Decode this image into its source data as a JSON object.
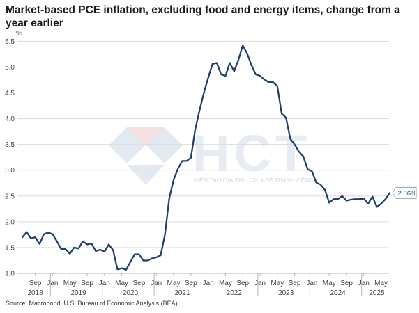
{
  "title": "Market-based PCE inflation, excluding food and energy items, change from a year earlier",
  "source": "Source: Macrobond, U.S. Bureau of Economic Analysis (BEA)",
  "watermark": {
    "logo_text": "HCT",
    "tagline": "KIẾN TẠO GIÁ TRỊ - CHIA SẺ THÀNH CÔNG"
  },
  "colors": {
    "line": "#1f3f6e",
    "grid": "#dcdcdc",
    "axis": "#b5b5b5"
  },
  "chart_data": {
    "type": "line",
    "ylabel": "%",
    "ylim": [
      1.0,
      5.6
    ],
    "yticks": [
      1.0,
      1.5,
      2.0,
      2.5,
      3.0,
      3.5,
      4.0,
      4.5,
      5.0,
      5.5
    ],
    "ytick_labels": [
      "1.0",
      "1.5",
      "2.0",
      "2.5",
      "3.0",
      "3.5",
      "4.0",
      "4.5",
      "5.0",
      "5.5"
    ],
    "grid": true,
    "x_start": "Jun 2018",
    "months": [
      "Jun 2018",
      "Jul 2018",
      "Aug 2018",
      "Sep 2018",
      "Oct 2018",
      "Nov 2018",
      "Dec 2018",
      "Jan 2019",
      "Feb 2019",
      "Mar 2019",
      "Apr 2019",
      "May 2019",
      "Jun 2019",
      "Jul 2019",
      "Aug 2019",
      "Sep 2019",
      "Oct 2019",
      "Nov 2019",
      "Dec 2019",
      "Jan 2020",
      "Feb 2020",
      "Mar 2020",
      "Apr 2020",
      "May 2020",
      "Jun 2020",
      "Jul 2020",
      "Aug 2020",
      "Sep 2020",
      "Oct 2020",
      "Nov 2020",
      "Dec 2020",
      "Jan 2021",
      "Feb 2021",
      "Mar 2021",
      "Apr 2021",
      "May 2021",
      "Jun 2021",
      "Jul 2021",
      "Aug 2021",
      "Sep 2021",
      "Oct 2021",
      "Nov 2021",
      "Dec 2021",
      "Jan 2022",
      "Feb 2022",
      "Mar 2022",
      "Apr 2022",
      "May 2022",
      "Jun 2022",
      "Jul 2022",
      "Aug 2022",
      "Sep 2022",
      "Oct 2022",
      "Nov 2022",
      "Dec 2022",
      "Jan 2023",
      "Feb 2023",
      "Mar 2023",
      "Apr 2023",
      "May 2023",
      "Jun 2023",
      "Jul 2023",
      "Aug 2023",
      "Sep 2023",
      "Oct 2023",
      "Nov 2023",
      "Dec 2023",
      "Jan 2024",
      "Feb 2024",
      "Mar 2024",
      "Apr 2024",
      "May 2024",
      "Jun 2024",
      "Jul 2024",
      "Aug 2024",
      "Sep 2024",
      "Oct 2024",
      "Nov 2024",
      "Dec 2024",
      "Jan 2025",
      "Feb 2025",
      "Mar 2025",
      "Apr 2025",
      "May 2025",
      "Jun 2025",
      "Jul 2025"
    ],
    "values": [
      1.7,
      1.8,
      1.68,
      1.7,
      1.57,
      1.76,
      1.79,
      1.76,
      1.62,
      1.47,
      1.47,
      1.38,
      1.5,
      1.48,
      1.62,
      1.56,
      1.58,
      1.43,
      1.46,
      1.42,
      1.56,
      1.45,
      1.08,
      1.1,
      1.07,
      1.22,
      1.37,
      1.37,
      1.25,
      1.25,
      1.29,
      1.31,
      1.35,
      1.75,
      2.46,
      2.81,
      3.03,
      3.18,
      3.18,
      3.24,
      3.79,
      4.16,
      4.5,
      4.79,
      5.06,
      5.08,
      4.86,
      4.83,
      5.08,
      4.92,
      5.14,
      5.42,
      5.27,
      5.04,
      4.86,
      4.83,
      4.76,
      4.71,
      4.71,
      4.63,
      4.1,
      4.02,
      3.61,
      3.5,
      3.36,
      3.27,
      3.02,
      2.98,
      2.76,
      2.72,
      2.62,
      2.37,
      2.44,
      2.44,
      2.5,
      2.41,
      2.43,
      2.44,
      2.44,
      2.45,
      2.35,
      2.49,
      2.29,
      2.35,
      2.44,
      2.56
    ],
    "x_tick_labels": [
      {
        "month": "Sep 2018",
        "label": "Sep"
      },
      {
        "month": "Jan 2019",
        "label": "Jan"
      },
      {
        "month": "May 2019",
        "label": "May"
      },
      {
        "month": "Sep 2019",
        "label": "Sep"
      },
      {
        "month": "Jan 2020",
        "label": "Jan"
      },
      {
        "month": "May 2020",
        "label": "May"
      },
      {
        "month": "Sep 2020",
        "label": "Sep"
      },
      {
        "month": "Jan 2021",
        "label": "Jan"
      },
      {
        "month": "May 2021",
        "label": "May"
      },
      {
        "month": "Sep 2021",
        "label": "Sep"
      },
      {
        "month": "Jan 2022",
        "label": "Jan"
      },
      {
        "month": "May 2022",
        "label": "May"
      },
      {
        "month": "Sep 2022",
        "label": "Sep"
      },
      {
        "month": "Jan 2023",
        "label": "Jan"
      },
      {
        "month": "May 2023",
        "label": "May"
      },
      {
        "month": "Sep 2023",
        "label": "Sep"
      },
      {
        "month": "Jan 2024",
        "label": "Jan"
      },
      {
        "month": "May 2024",
        "label": "May"
      },
      {
        "month": "Sep 2024",
        "label": "Sep"
      },
      {
        "month": "Jan 2025",
        "label": "Jan"
      },
      {
        "month": "May 2025",
        "label": "May"
      }
    ],
    "year_labels": [
      {
        "month": "Sep 2018",
        "label": "2018"
      },
      {
        "month": "Jul 2019",
        "label": "2019"
      },
      {
        "month": "Jul 2020",
        "label": "2020"
      },
      {
        "month": "Jul 2021",
        "label": "2021"
      },
      {
        "month": "Jul 2022",
        "label": "2022"
      },
      {
        "month": "Jul 2023",
        "label": "2023"
      },
      {
        "month": "Jul 2024",
        "label": "2024"
      },
      {
        "month": "Apr 2025",
        "label": "2025"
      }
    ],
    "year_boundaries": [
      "Dec 2018",
      "Dec 2019",
      "Dec 2020",
      "Dec 2021",
      "Dec 2022",
      "Dec 2023",
      "Dec 2024"
    ],
    "last_value_label": "2.56%"
  }
}
